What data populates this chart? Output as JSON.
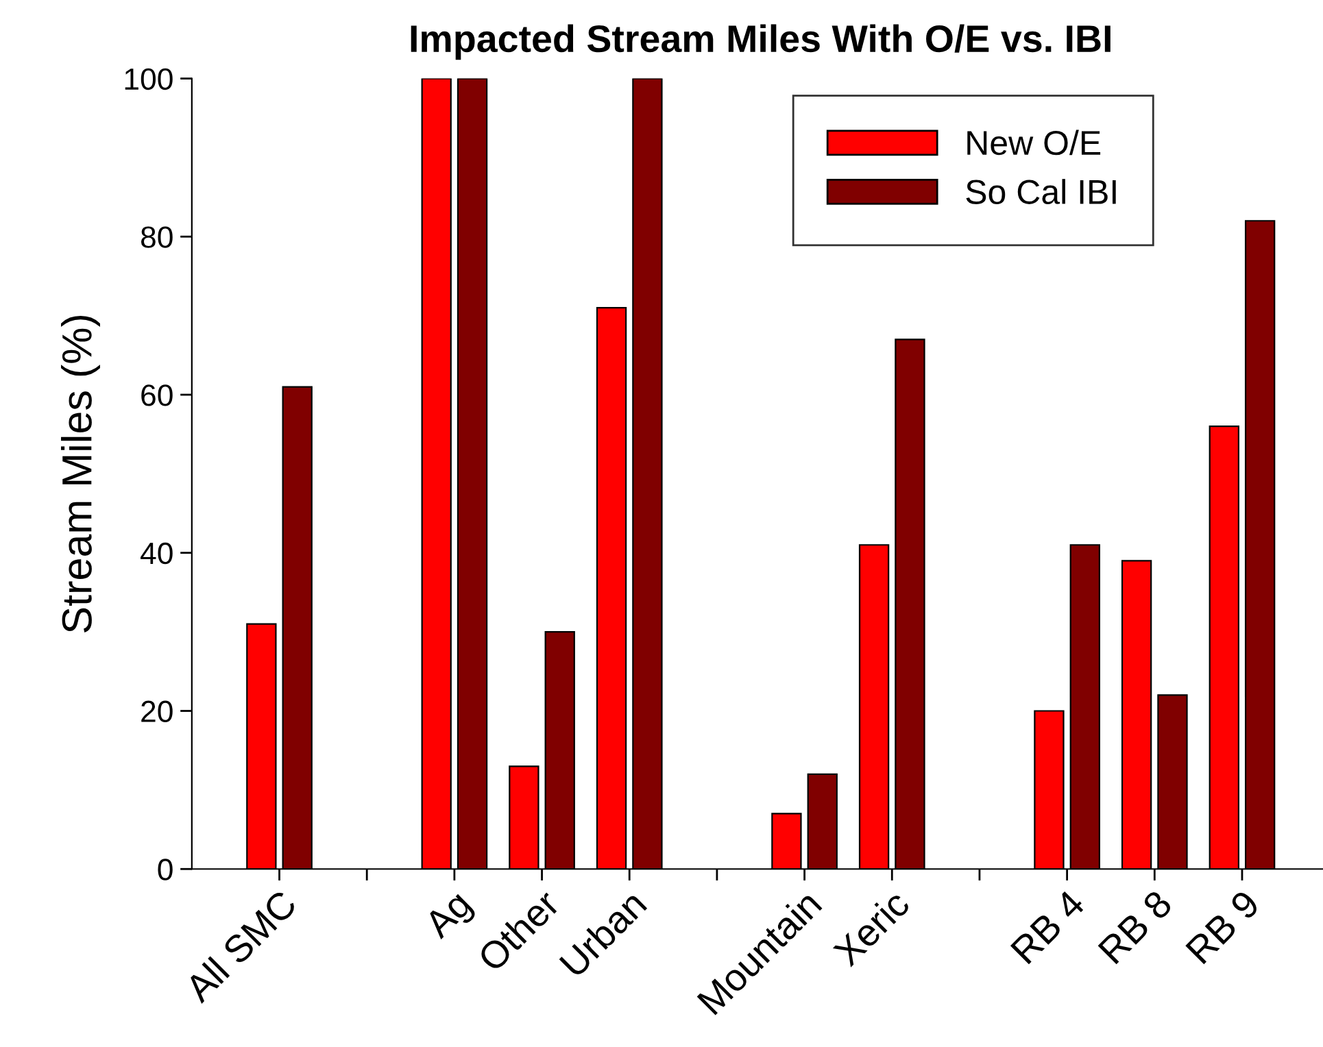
{
  "chart_data": {
    "type": "bar",
    "title": "Impacted Stream Miles With O/E vs. IBI",
    "ylabel": "Stream Miles (%)",
    "categories": [
      "All SMC",
      null,
      "Ag",
      "Other",
      "Urban",
      null,
      "Mountain",
      "Xeric",
      null,
      "RB 4",
      "RB 8",
      "RB 9"
    ],
    "series": [
      {
        "name": "New O/E",
        "color": "#ff0000",
        "values": [
          31,
          null,
          100,
          13,
          71,
          null,
          7,
          41,
          null,
          20,
          39,
          56
        ]
      },
      {
        "name": "So Cal IBI",
        "color": "#800000",
        "values": [
          61,
          null,
          100,
          30,
          100,
          null,
          12,
          67,
          null,
          41,
          22,
          82
        ]
      }
    ],
    "ylim": [
      0,
      100
    ],
    "yticks": [
      0,
      20,
      40,
      60,
      80,
      100
    ],
    "grid": false,
    "legend": "top right"
  }
}
